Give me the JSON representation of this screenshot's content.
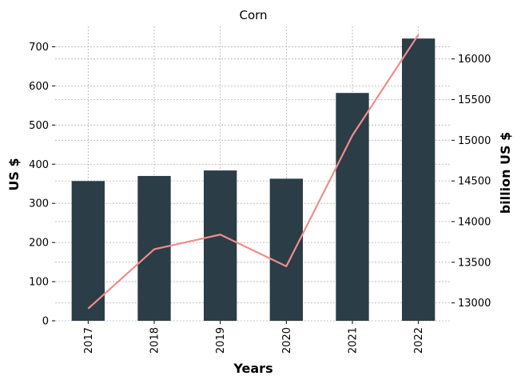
{
  "chart_data": {
    "type": "bar",
    "title": "Corn",
    "xlabel": "Years",
    "ylabel": "US $",
    "y2label": "billion US $",
    "categories": [
      "2017",
      "2018",
      "2019",
      "2020",
      "2021",
      "2022"
    ],
    "series": [
      {
        "type": "bar",
        "axis": "left",
        "color": "#2b3d47",
        "values": [
          357,
          370,
          384,
          363,
          582,
          721
        ]
      },
      {
        "type": "line",
        "axis": "right",
        "color": "#f08c8c",
        "values": [
          12930,
          13660,
          13840,
          13450,
          15060,
          16300
        ]
      }
    ],
    "ylim": [
      0,
      752
    ],
    "y2lim": [
      12780,
      16400
    ],
    "yticks": [
      0,
      100,
      200,
      300,
      400,
      500,
      600,
      700
    ],
    "y2ticks": [
      13000,
      13500,
      14000,
      14500,
      15000,
      15500,
      16000
    ],
    "grid": true
  }
}
